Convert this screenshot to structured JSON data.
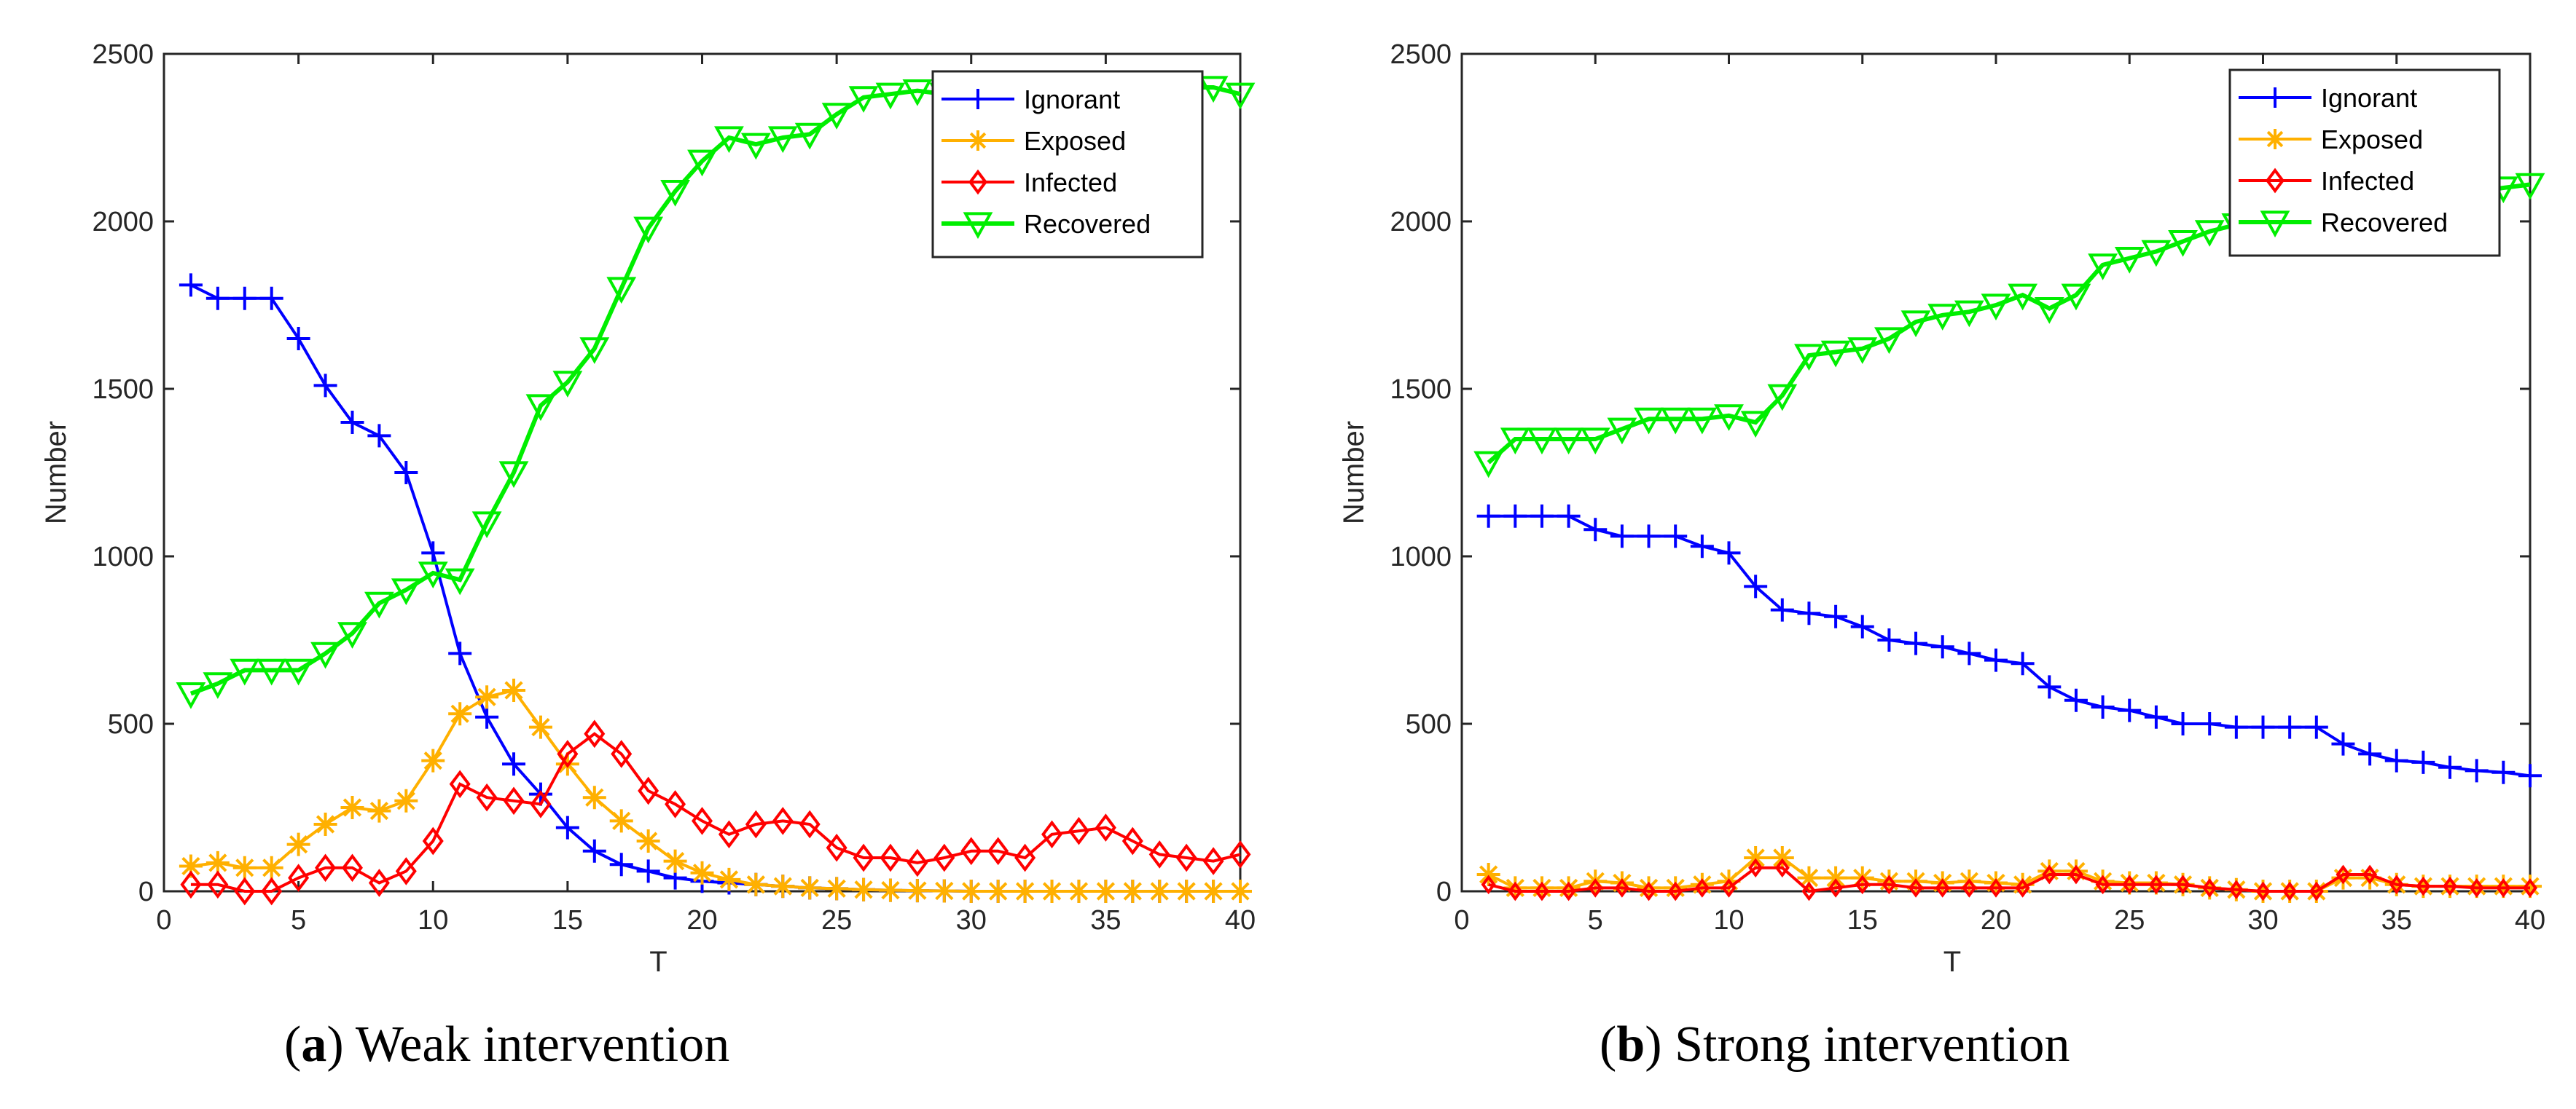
{
  "captions": [
    {
      "letter": "a",
      "text": "Weak intervention"
    },
    {
      "letter": "b",
      "text": "Strong intervention"
    }
  ],
  "chart_data": [
    {
      "type": "line",
      "title": "(a) Weak intervention",
      "xlabel": "T",
      "ylabel": "Number",
      "xlim": [
        0,
        40
      ],
      "ylim": [
        0,
        2500
      ],
      "xticks": [
        0,
        5,
        10,
        15,
        20,
        25,
        30,
        35,
        40
      ],
      "yticks": [
        0,
        500,
        1000,
        1500,
        2000,
        2500
      ],
      "legend_position": "top-right",
      "x": [
        1,
        2,
        3,
        4,
        5,
        6,
        7,
        8,
        9,
        10,
        11,
        12,
        13,
        14,
        15,
        16,
        17,
        18,
        19,
        20,
        21,
        22,
        23,
        24,
        25,
        26,
        27,
        28,
        29,
        30,
        31,
        32,
        33,
        34,
        35,
        36,
        37,
        38,
        39,
        40
      ],
      "series": [
        {
          "name": "Ignorant",
          "color": "#0000ff",
          "marker": "plus",
          "values": [
            1810,
            1770,
            1770,
            1770,
            1650,
            1510,
            1400,
            1360,
            1250,
            1010,
            710,
            520,
            380,
            290,
            190,
            120,
            80,
            60,
            40,
            30,
            25,
            20,
            15,
            10,
            8,
            5,
            3,
            2,
            1,
            0,
            0,
            0,
            0,
            0,
            0,
            0,
            0,
            0,
            0,
            0
          ]
        },
        {
          "name": "Exposed",
          "color": "#ffb000",
          "marker": "asterisk",
          "values": [
            75,
            85,
            70,
            70,
            140,
            200,
            250,
            240,
            270,
            390,
            530,
            580,
            600,
            490,
            380,
            280,
            210,
            150,
            90,
            55,
            35,
            20,
            15,
            10,
            8,
            5,
            3,
            2,
            1,
            0,
            0,
            0,
            0,
            0,
            0,
            0,
            0,
            0,
            0,
            0
          ]
        },
        {
          "name": "Infected",
          "color": "#ff0000",
          "marker": "diamond",
          "values": [
            20,
            20,
            0,
            0,
            40,
            70,
            70,
            25,
            60,
            150,
            320,
            280,
            270,
            260,
            410,
            470,
            410,
            300,
            260,
            210,
            170,
            200,
            210,
            200,
            130,
            100,
            100,
            85,
            100,
            120,
            120,
            100,
            170,
            180,
            190,
            150,
            110,
            100,
            90,
            110
          ]
        },
        {
          "name": "Recovered",
          "color": "#00ee00",
          "marker": "triangle-down",
          "values": [
            590,
            620,
            660,
            660,
            660,
            710,
            770,
            860,
            900,
            950,
            930,
            1100,
            1250,
            1450,
            1520,
            1620,
            1800,
            1980,
            2090,
            2180,
            2250,
            2230,
            2250,
            2260,
            2320,
            2370,
            2380,
            2390,
            2380,
            2390,
            2395,
            2400,
            2400,
            2400,
            2400,
            2400,
            2400,
            2400,
            2400,
            2380
          ]
        }
      ]
    },
    {
      "type": "line",
      "title": "(b) Strong intervention",
      "xlabel": "T",
      "ylabel": "Number",
      "xlim": [
        0,
        40
      ],
      "ylim": [
        0,
        2500
      ],
      "xticks": [
        0,
        5,
        10,
        15,
        20,
        25,
        30,
        35,
        40
      ],
      "yticks": [
        0,
        500,
        1000,
        1500,
        2000,
        2500
      ],
      "legend_position": "top-right",
      "x": [
        1,
        2,
        3,
        4,
        5,
        6,
        7,
        8,
        9,
        10,
        11,
        12,
        13,
        14,
        15,
        16,
        17,
        18,
        19,
        20,
        21,
        22,
        23,
        24,
        25,
        26,
        27,
        28,
        29,
        30,
        31,
        32,
        33,
        34,
        35,
        36,
        37,
        38,
        39,
        40
      ],
      "series": [
        {
          "name": "Ignorant",
          "color": "#0000ff",
          "marker": "plus",
          "values": [
            1120,
            1120,
            1120,
            1120,
            1080,
            1060,
            1060,
            1060,
            1030,
            1010,
            910,
            840,
            830,
            820,
            790,
            750,
            740,
            730,
            710,
            690,
            680,
            610,
            570,
            550,
            540,
            520,
            500,
            500,
            490,
            490,
            490,
            490,
            440,
            410,
            390,
            385,
            370,
            360,
            355,
            345
          ]
        },
        {
          "name": "Exposed",
          "color": "#ffb000",
          "marker": "asterisk",
          "values": [
            50,
            10,
            10,
            10,
            30,
            25,
            10,
            10,
            20,
            30,
            100,
            100,
            40,
            40,
            40,
            30,
            30,
            25,
            30,
            25,
            20,
            60,
            60,
            30,
            25,
            25,
            20,
            10,
            5,
            0,
            0,
            0,
            40,
            40,
            20,
            15,
            15,
            15,
            15,
            15
          ]
        },
        {
          "name": "Infected",
          "color": "#ff0000",
          "marker": "diamond",
          "values": [
            20,
            0,
            0,
            0,
            10,
            10,
            0,
            0,
            10,
            10,
            70,
            70,
            0,
            10,
            20,
            20,
            10,
            10,
            10,
            10,
            10,
            50,
            50,
            20,
            20,
            20,
            20,
            10,
            5,
            0,
            0,
            0,
            50,
            50,
            20,
            15,
            15,
            10,
            10,
            10
          ]
        },
        {
          "name": "Recovered",
          "color": "#00ee00",
          "marker": "triangle-down",
          "values": [
            1280,
            1350,
            1350,
            1350,
            1350,
            1380,
            1410,
            1410,
            1410,
            1420,
            1400,
            1480,
            1600,
            1610,
            1620,
            1650,
            1700,
            1720,
            1730,
            1750,
            1780,
            1740,
            1780,
            1870,
            1890,
            1910,
            1940,
            1970,
            1990,
            2010,
            2020,
            2030,
            1950,
            2050,
            2060,
            2070,
            2080,
            2090,
            2100,
            2110
          ]
        }
      ]
    }
  ]
}
